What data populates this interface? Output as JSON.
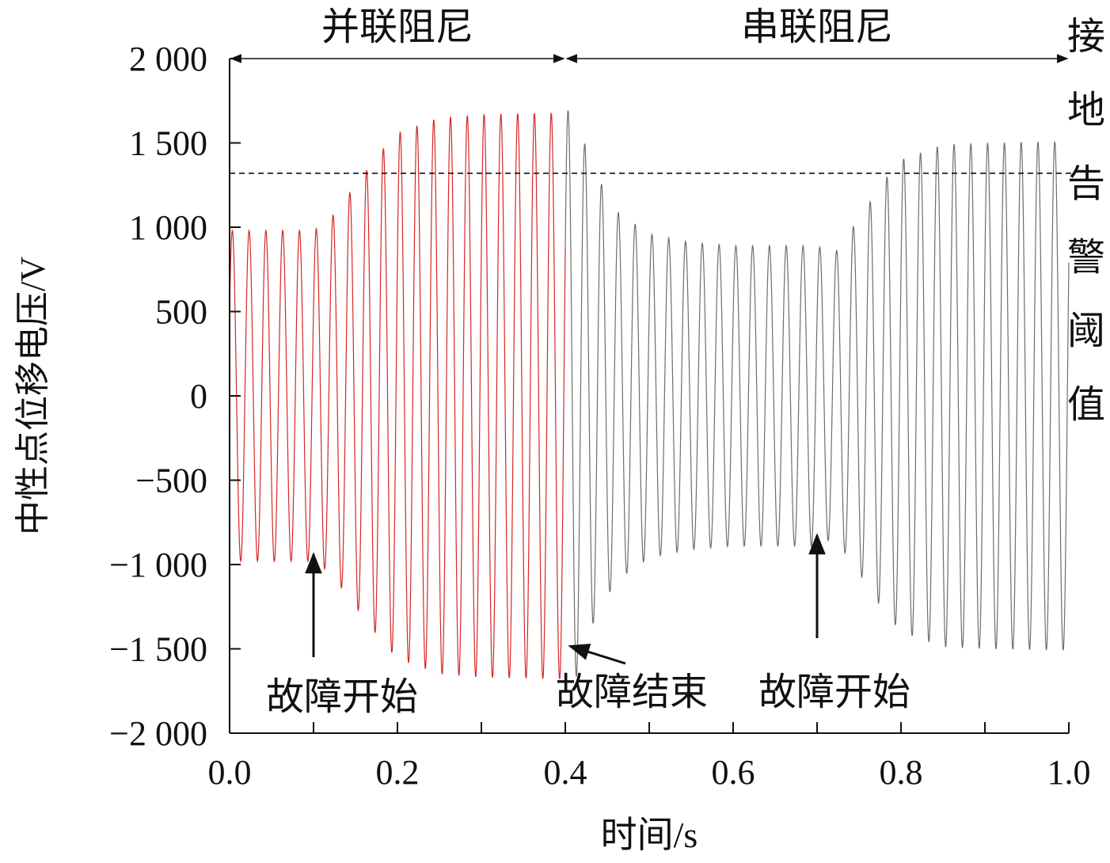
{
  "chart_data": {
    "type": "line",
    "title": "",
    "xlabel": "时间/s",
    "ylabel": "中性点位移电压/V",
    "xlim": [
      0,
      1.0
    ],
    "ylim": [
      -2000,
      2000
    ],
    "xticks": [
      0.0,
      0.1,
      0.2,
      0.3,
      0.4,
      0.5,
      0.6,
      0.7,
      0.8,
      0.9,
      1.0
    ],
    "xtick_labels": [
      "0.0",
      "0.2",
      "0.4",
      "0.6",
      "0.8",
      "1.0"
    ],
    "xtick_label_values": [
      0.0,
      0.2,
      0.4,
      0.6,
      0.8,
      1.0
    ],
    "yticks": [
      -2000,
      -1500,
      -1000,
      -500,
      0,
      500,
      1000,
      1500,
      2000
    ],
    "ytick_labels": [
      "−2 000",
      "−1 500",
      "−1 000",
      "−500",
      "0",
      "500",
      "1 000",
      "1 500",
      "2 000"
    ],
    "grid": false,
    "legend": "none",
    "frequency_hz": 50,
    "series": [
      {
        "color": "#d62728",
        "t_range": [
          0,
          0.4
        ],
        "envelope_t": [
          0.0,
          0.1,
          0.12,
          0.15,
          0.18,
          0.2,
          0.25,
          0.3,
          0.4
        ],
        "envelope_amp": [
          980,
          980,
          1050,
          1250,
          1450,
          1560,
          1650,
          1670,
          1680
        ]
      },
      {
        "color": "#6e6e6e",
        "t_range": [
          0.4,
          1.0
        ],
        "envelope_t": [
          0.4,
          0.41,
          0.43,
          0.46,
          0.5,
          0.55,
          0.6,
          0.7,
          0.72,
          0.75,
          0.78,
          0.8,
          0.85,
          0.9,
          1.0
        ],
        "envelope_amp": [
          1680,
          1720,
          1380,
          1100,
          960,
          910,
          890,
          890,
          840,
          1050,
          1280,
          1400,
          1490,
          1500,
          1510
        ]
      }
    ],
    "threshold": {
      "value": 1320,
      "style": "dashed",
      "label": "接地告警阈值"
    },
    "region_labels": [
      {
        "text": "并联阻尼",
        "x_start": 0.0,
        "x_end": 0.4
      },
      {
        "text": "串联阻尼",
        "x_start": 0.4,
        "x_end": 1.0
      }
    ],
    "annotations": [
      {
        "text": "故障开始",
        "arrow_x": 0.1
      },
      {
        "text": "故障结束",
        "arrow_x": 0.4
      },
      {
        "text": "故障开始",
        "arrow_x": 0.7
      }
    ]
  }
}
